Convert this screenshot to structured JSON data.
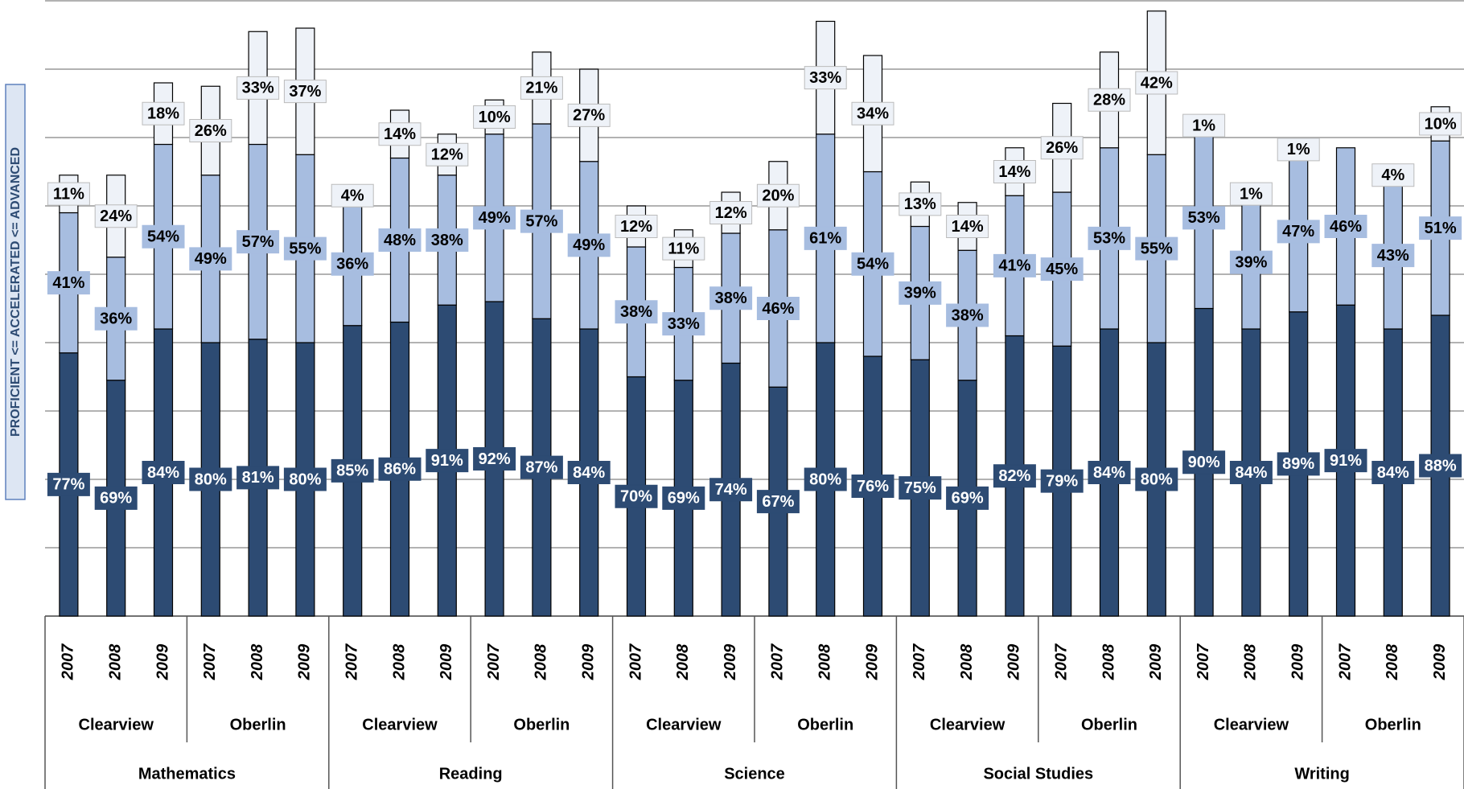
{
  "chart_data": {
    "type": "stacked_bar",
    "ylabel": "PROFICIENT <= ACCELERATED <= ADVANCED",
    "categories": [
      "2007",
      "2008",
      "2009",
      "2007",
      "2008",
      "2009",
      "2007",
      "2008",
      "2009",
      "2007",
      "2008",
      "2009",
      "2007",
      "2008",
      "2009",
      "2007",
      "2008",
      "2009",
      "2007",
      "2008",
      "2009",
      "2007",
      "2008",
      "2009",
      "2007",
      "2008",
      "2009",
      "2007",
      "2008",
      "2009"
    ],
    "schools": [
      "Clearview",
      "Oberlin",
      "Clearview",
      "Oberlin",
      "Clearview",
      "Oberlin",
      "Clearview",
      "Oberlin",
      "Clearview",
      "Oberlin"
    ],
    "subjects": [
      "Mathematics",
      "Reading",
      "Science",
      "Social Studies",
      "Writing"
    ],
    "series": [
      {
        "color": "#2d4b73",
        "label_color": "#ffffff",
        "values": [
          77,
          69,
          84,
          80,
          81,
          80,
          85,
          86,
          91,
          92,
          87,
          84,
          70,
          69,
          74,
          67,
          80,
          76,
          75,
          69,
          82,
          79,
          84,
          80,
          90,
          84,
          89,
          91,
          84,
          88
        ],
        "value_labels": [
          "77%",
          "69%",
          "84%",
          "80%",
          "81%",
          "80%",
          "85%",
          "86%",
          "91%",
          "92%",
          "87%",
          "84%",
          "70%",
          "69%",
          "74%",
          "67%",
          "80%",
          "76%",
          "75%",
          "69%",
          "82%",
          "79%",
          "84%",
          "80%",
          "90%",
          "84%",
          "89%",
          "91%",
          "84%",
          "88%"
        ]
      },
      {
        "color": "#a7bde0",
        "label_color": "#000000",
        "values": [
          41,
          36,
          54,
          49,
          57,
          55,
          36,
          48,
          38,
          49,
          57,
          49,
          38,
          33,
          38,
          46,
          61,
          54,
          39,
          38,
          41,
          45,
          53,
          55,
          53,
          39,
          47,
          46,
          43,
          51
        ],
        "value_labels": [
          "41%",
          "36%",
          "54%",
          "49%",
          "57%",
          "55%",
          "36%",
          "48%",
          "38%",
          "49%",
          "57%",
          "49%",
          "38%",
          "33%",
          "38%",
          "46%",
          "61%",
          "54%",
          "39%",
          "38%",
          "41%",
          "45%",
          "53%",
          "55%",
          "53%",
          "39%",
          "47%",
          "46%",
          "43%",
          "51%"
        ]
      },
      {
        "color": "#eef2f8",
        "label_color": "#000000",
        "values": [
          11,
          24,
          18,
          26,
          33,
          37,
          4,
          14,
          12,
          10,
          21,
          27,
          12,
          11,
          12,
          20,
          33,
          34,
          13,
          14,
          14,
          26,
          28,
          42,
          1,
          1,
          1,
          null,
          4,
          10
        ],
        "value_labels": [
          "11%",
          "24%",
          "18%",
          "26%",
          "33%",
          "37%",
          "4%",
          "14%",
          "12%",
          "10%",
          "21%",
          "27%",
          "12%",
          "11%",
          "12%",
          "20%",
          "33%",
          "34%",
          "13%",
          "14%",
          "14%",
          "26%",
          "28%",
          "42%",
          "1%",
          "1%",
          "1%",
          null,
          "4%",
          "10%"
        ]
      }
    ],
    "ylim": [
      0,
      180
    ],
    "yticks": [
      0,
      20,
      40,
      60,
      80,
      100,
      120,
      140,
      160,
      180
    ],
    "grid": true
  }
}
